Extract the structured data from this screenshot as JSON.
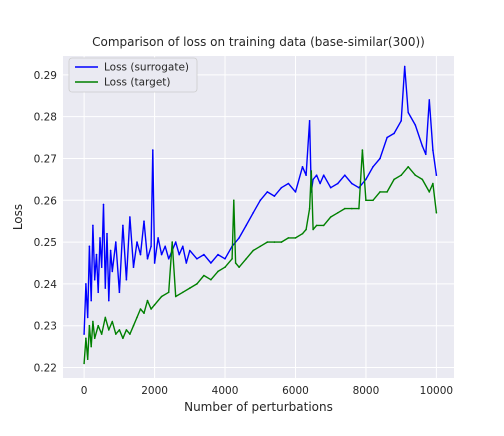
{
  "chart_data": {
    "type": "line",
    "title": "Comparison of loss on training data (base-similar(300))",
    "xlabel": "Number of perturbations",
    "ylabel": "Loss",
    "xlim": [
      -600,
      10500
    ],
    "ylim": [
      0.2175,
      0.2945
    ],
    "xticks": [
      0,
      2000,
      4000,
      6000,
      8000,
      10000
    ],
    "yticks": [
      0.22,
      0.23,
      0.24,
      0.25,
      0.26,
      0.27,
      0.28,
      0.29
    ],
    "xtick_labels": [
      "0",
      "2000",
      "4000",
      "6000",
      "8000",
      "10000"
    ],
    "ytick_labels": [
      "0.22",
      "0.23",
      "0.24",
      "0.25",
      "0.26",
      "0.27",
      "0.28",
      "0.29"
    ],
    "grid": true,
    "legend_position": "upper-left",
    "series": [
      {
        "name": "Loss (surrogate)",
        "color": "#0000ff",
        "x": [
          0,
          50,
          100,
          150,
          200,
          250,
          300,
          350,
          400,
          450,
          500,
          550,
          600,
          650,
          700,
          750,
          800,
          900,
          1000,
          1100,
          1200,
          1300,
          1400,
          1500,
          1600,
          1700,
          1800,
          1900,
          1950,
          2000,
          2100,
          2200,
          2300,
          2400,
          2500,
          2600,
          2700,
          2800,
          2900,
          3000,
          3200,
          3400,
          3600,
          3800,
          4000,
          4200,
          4400,
          4600,
          4800,
          5000,
          5200,
          5400,
          5600,
          5800,
          6000,
          6200,
          6300,
          6400,
          6450,
          6500,
          6600,
          6700,
          6800,
          7000,
          7200,
          7400,
          7600,
          7800,
          8000,
          8200,
          8400,
          8600,
          8800,
          9000,
          9100,
          9200,
          9400,
          9600,
          9700,
          9800,
          9900,
          10000
        ],
        "y": [
          0.228,
          0.24,
          0.232,
          0.249,
          0.236,
          0.254,
          0.241,
          0.247,
          0.238,
          0.251,
          0.244,
          0.259,
          0.239,
          0.252,
          0.236,
          0.248,
          0.243,
          0.25,
          0.238,
          0.254,
          0.241,
          0.256,
          0.244,
          0.25,
          0.247,
          0.255,
          0.246,
          0.249,
          0.272,
          0.245,
          0.251,
          0.247,
          0.249,
          0.246,
          0.248,
          0.25,
          0.247,
          0.249,
          0.245,
          0.248,
          0.246,
          0.247,
          0.245,
          0.247,
          0.246,
          0.249,
          0.251,
          0.254,
          0.257,
          0.26,
          0.262,
          0.261,
          0.263,
          0.264,
          0.262,
          0.268,
          0.266,
          0.279,
          0.262,
          0.265,
          0.266,
          0.264,
          0.266,
          0.263,
          0.264,
          0.266,
          0.264,
          0.263,
          0.265,
          0.268,
          0.27,
          0.275,
          0.276,
          0.279,
          0.292,
          0.281,
          0.278,
          0.273,
          0.271,
          0.284,
          0.272,
          0.266
        ]
      },
      {
        "name": "Loss (target)",
        "color": "#008000",
        "x": [
          0,
          50,
          100,
          150,
          200,
          250,
          300,
          400,
          500,
          600,
          700,
          800,
          900,
          1000,
          1100,
          1200,
          1300,
          1400,
          1500,
          1600,
          1700,
          1800,
          1900,
          2000,
          2200,
          2400,
          2500,
          2600,
          2800,
          3000,
          3200,
          3400,
          3600,
          3800,
          4000,
          4200,
          4250,
          4300,
          4400,
          4600,
          4800,
          5000,
          5200,
          5400,
          5600,
          5800,
          6000,
          6200,
          6300,
          6400,
          6450,
          6500,
          6600,
          6800,
          7000,
          7200,
          7400,
          7600,
          7800,
          7900,
          8000,
          8200,
          8400,
          8600,
          8800,
          9000,
          9200,
          9400,
          9600,
          9800,
          9900,
          10000
        ],
        "y": [
          0.221,
          0.227,
          0.222,
          0.23,
          0.225,
          0.231,
          0.227,
          0.23,
          0.228,
          0.232,
          0.229,
          0.231,
          0.228,
          0.229,
          0.227,
          0.229,
          0.228,
          0.23,
          0.232,
          0.234,
          0.233,
          0.236,
          0.234,
          0.235,
          0.237,
          0.238,
          0.25,
          0.237,
          0.238,
          0.239,
          0.24,
          0.242,
          0.241,
          0.243,
          0.244,
          0.246,
          0.26,
          0.245,
          0.244,
          0.246,
          0.248,
          0.249,
          0.25,
          0.25,
          0.25,
          0.251,
          0.251,
          0.252,
          0.253,
          0.258,
          0.267,
          0.253,
          0.254,
          0.254,
          0.256,
          0.257,
          0.258,
          0.258,
          0.258,
          0.272,
          0.26,
          0.26,
          0.262,
          0.262,
          0.265,
          0.266,
          0.268,
          0.266,
          0.265,
          0.262,
          0.264,
          0.257
        ]
      }
    ]
  }
}
